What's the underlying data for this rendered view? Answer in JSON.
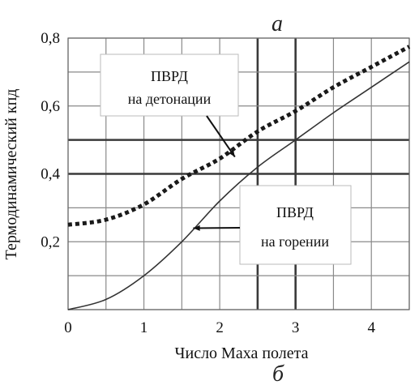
{
  "figure": {
    "top_letter": "а",
    "bottom_letter": "б"
  },
  "chart_data": {
    "type": "line",
    "xlabel": "Число Маха полета",
    "ylabel": "Термодинамический  кпд",
    "xlim": [
      0,
      4.5
    ],
    "ylim": [
      0,
      0.8
    ],
    "x_ticks": [
      "0",
      "1",
      "2",
      "3",
      "4"
    ],
    "y_ticks": [
      "0,2",
      "0,4",
      "0,6",
      "0,8"
    ],
    "grid": true,
    "series": [
      {
        "name": "ПВРД на детонации",
        "style": "dotted-thick",
        "color": "#1a1a1a",
        "points": [
          [
            0,
            0.25
          ],
          [
            0.5,
            0.265
          ],
          [
            1.0,
            0.31
          ],
          [
            1.5,
            0.385
          ],
          [
            2.0,
            0.445
          ],
          [
            2.5,
            0.525
          ],
          [
            3.0,
            0.585
          ],
          [
            3.5,
            0.655
          ],
          [
            4.0,
            0.715
          ],
          [
            4.5,
            0.775
          ]
        ]
      },
      {
        "name": "ПВРД на горении",
        "style": "solid-thin",
        "color": "#333333",
        "points": [
          [
            0,
            0.0
          ],
          [
            0.5,
            0.03
          ],
          [
            1.0,
            0.1
          ],
          [
            1.5,
            0.2
          ],
          [
            2.0,
            0.32
          ],
          [
            2.5,
            0.42
          ],
          [
            3.0,
            0.5
          ],
          [
            3.5,
            0.58
          ],
          [
            4.0,
            0.655
          ],
          [
            4.5,
            0.73
          ]
        ]
      }
    ],
    "annotations": [
      {
        "lines": [
          "ПВРД",
          "на детонации"
        ],
        "series": 0,
        "arrow_to": [
          2.2,
          0.45
        ]
      },
      {
        "lines": [
          "ПВРД",
          "на горении"
        ],
        "series": 1,
        "arrow_to": [
          1.65,
          0.24
        ]
      }
    ]
  }
}
